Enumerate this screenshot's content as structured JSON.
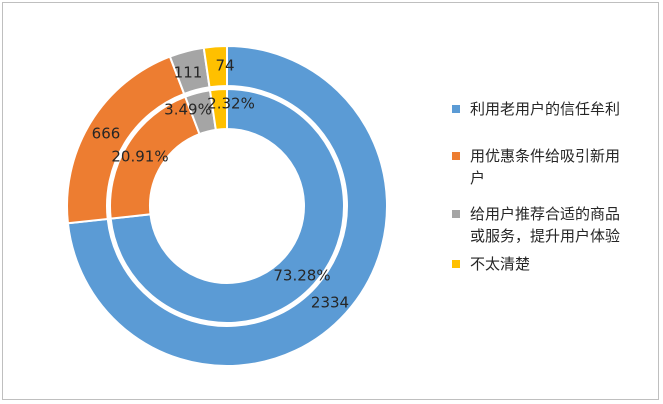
{
  "chart_data": {
    "type": "pie",
    "subtype": "double-donut",
    "categories": [
      "利用老用户的信任牟利",
      "用优惠条件给吸引新用户",
      "给用户推荐合适的商品或服务，提升用户体验",
      "不太清楚"
    ],
    "colors": [
      "#5B9BD5",
      "#ED7D31",
      "#A5A5A5",
      "#FFC000"
    ],
    "series": [
      {
        "ring": "outer",
        "values": [
          2334,
          666,
          111,
          74
        ],
        "labels": [
          "2334",
          "666",
          "111",
          "74"
        ]
      },
      {
        "ring": "inner",
        "values": [
          73.28,
          20.91,
          3.49,
          2.32
        ],
        "labels": [
          "73.28%",
          "20.91%",
          "3.49%",
          "2.32%"
        ]
      }
    ],
    "legend": {
      "position": "right",
      "entries": [
        {
          "text": "利用老用户的信任牟利"
        },
        {
          "text": "用优惠条件给吸引新用户"
        },
        {
          "text": "给用户推荐合适的商品或服务，提升用户体验"
        },
        {
          "text": "不太清楚"
        }
      ]
    }
  }
}
